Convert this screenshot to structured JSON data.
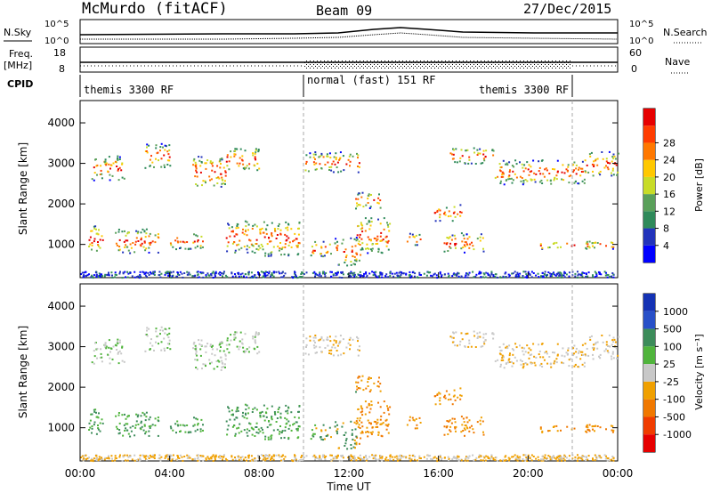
{
  "header": {
    "station": "McMurdo (fitACF)",
    "beam": "Beam 09",
    "date": "27/Dec/2015"
  },
  "strip_panels": {
    "nsky_label": "N.Sky",
    "nsky_ticks": [
      "10^5",
      "10^0"
    ],
    "nsearch_label": "N.Search",
    "nsearch_ticks": [
      "10^5",
      "10^0"
    ],
    "freq_label_1": "Freq.",
    "freq_label_2": "[MHz]",
    "freq_ticks": [
      "18",
      "8"
    ],
    "nave_label": "Nave",
    "nave_ticks": [
      "60",
      "0"
    ],
    "cpid_label": "CPID",
    "cpid_segments": [
      {
        "label": "themis 3300 RF",
        "start_hour": 0,
        "end_hour": 10
      },
      {
        "label": "normal (fast) 151 RF",
        "start_hour": 10,
        "end_hour": 22
      },
      {
        "label": "themis 3300 RF",
        "start_hour": 22,
        "end_hour": 24
      }
    ]
  },
  "chart_data": [
    {
      "type": "heatmap",
      "title": "",
      "quantity": "Power",
      "ylabel": "Slant Range [km]",
      "xlabel": "Time UT",
      "xlim_hours": [
        0,
        24
      ],
      "ylim": [
        180,
        4550
      ],
      "yticks": [
        "1000",
        "2000",
        "3000",
        "4000"
      ],
      "colorbar_label": "Power [dB]",
      "colorbar_ticks": [
        "4",
        "8",
        "12",
        "16",
        "20",
        "24",
        "28"
      ],
      "colorbar_colors": [
        "#0000ff",
        "#2233bb",
        "#2f8a5a",
        "#5aa05a",
        "#c8dc28",
        "#ffc800",
        "#ff7800",
        "#ff3c00",
        "#e60000"
      ]
    },
    {
      "type": "heatmap",
      "title": "",
      "quantity": "Velocity",
      "ylabel": "Slant Range [km]",
      "xlabel": "Time UT",
      "xlim_hours": [
        0,
        24
      ],
      "ylim": [
        180,
        4550
      ],
      "yticks": [
        "1000",
        "2000",
        "3000",
        "4000"
      ],
      "colorbar_label": "Velocity [m s⁻¹]",
      "colorbar_ticks": [
        "1000",
        "500",
        "100",
        "25",
        "-25",
        "-100",
        "-500",
        "-1000"
      ],
      "colorbar_colors": [
        "#1432b4",
        "#2850c8",
        "#3c8c5a",
        "#50b43c",
        "#c8c8c8",
        "#f0a000",
        "#f07800",
        "#f03c00",
        "#e60000"
      ]
    }
  ],
  "x_axis": {
    "ticks": [
      "00:00",
      "04:00",
      "08:00",
      "12:00",
      "16:00",
      "20:00",
      "00:00"
    ],
    "label": "Time UT"
  }
}
